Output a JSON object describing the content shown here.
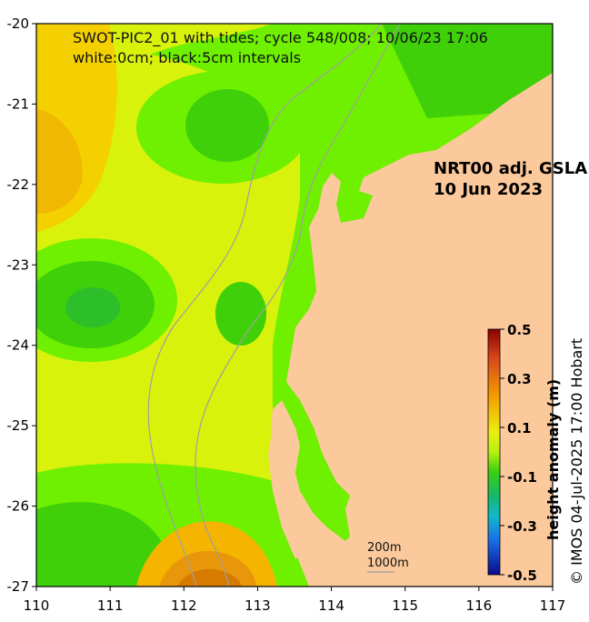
{
  "title_line1": "SWOT-PIC2_01 with tides; cycle 548/008; 10/06/23 17:06",
  "title_line2": "white:0cm; black:5cm intervals",
  "product_label_line1": "NRT00 adj. GSLA",
  "product_label_line2": "10 Jun 2023",
  "depth_contour_1": "200m",
  "depth_contour_2": "1000m",
  "colorbar_title": "height anomaly (m)",
  "credit": "© IMOS 04-Jul-2025 17:00 Hobart",
  "colors": {
    "land": "#fbc99b",
    "yellow_green": "#d8f20c",
    "green": "#3fd00a",
    "bright_green": "#6ef000",
    "orange": "#f4b400",
    "dark_orange": "#e08a00"
  },
  "chart_data": {
    "type": "heatmap",
    "x_ticks": [
      "110",
      "111",
      "112",
      "113",
      "114",
      "115",
      "116",
      "117"
    ],
    "y_ticks": [
      "-20",
      "-21",
      "-22",
      "-23",
      "-24",
      "-25",
      "-26",
      "-27"
    ],
    "xlim": [
      110,
      117
    ],
    "ylim": [
      -27,
      -20
    ],
    "colorbar": {
      "ticks": [
        "0.5",
        "0.3",
        "0.1",
        "-0.1",
        "-0.3",
        "-0.5"
      ],
      "range": [
        -0.5,
        0.5
      ]
    }
  }
}
